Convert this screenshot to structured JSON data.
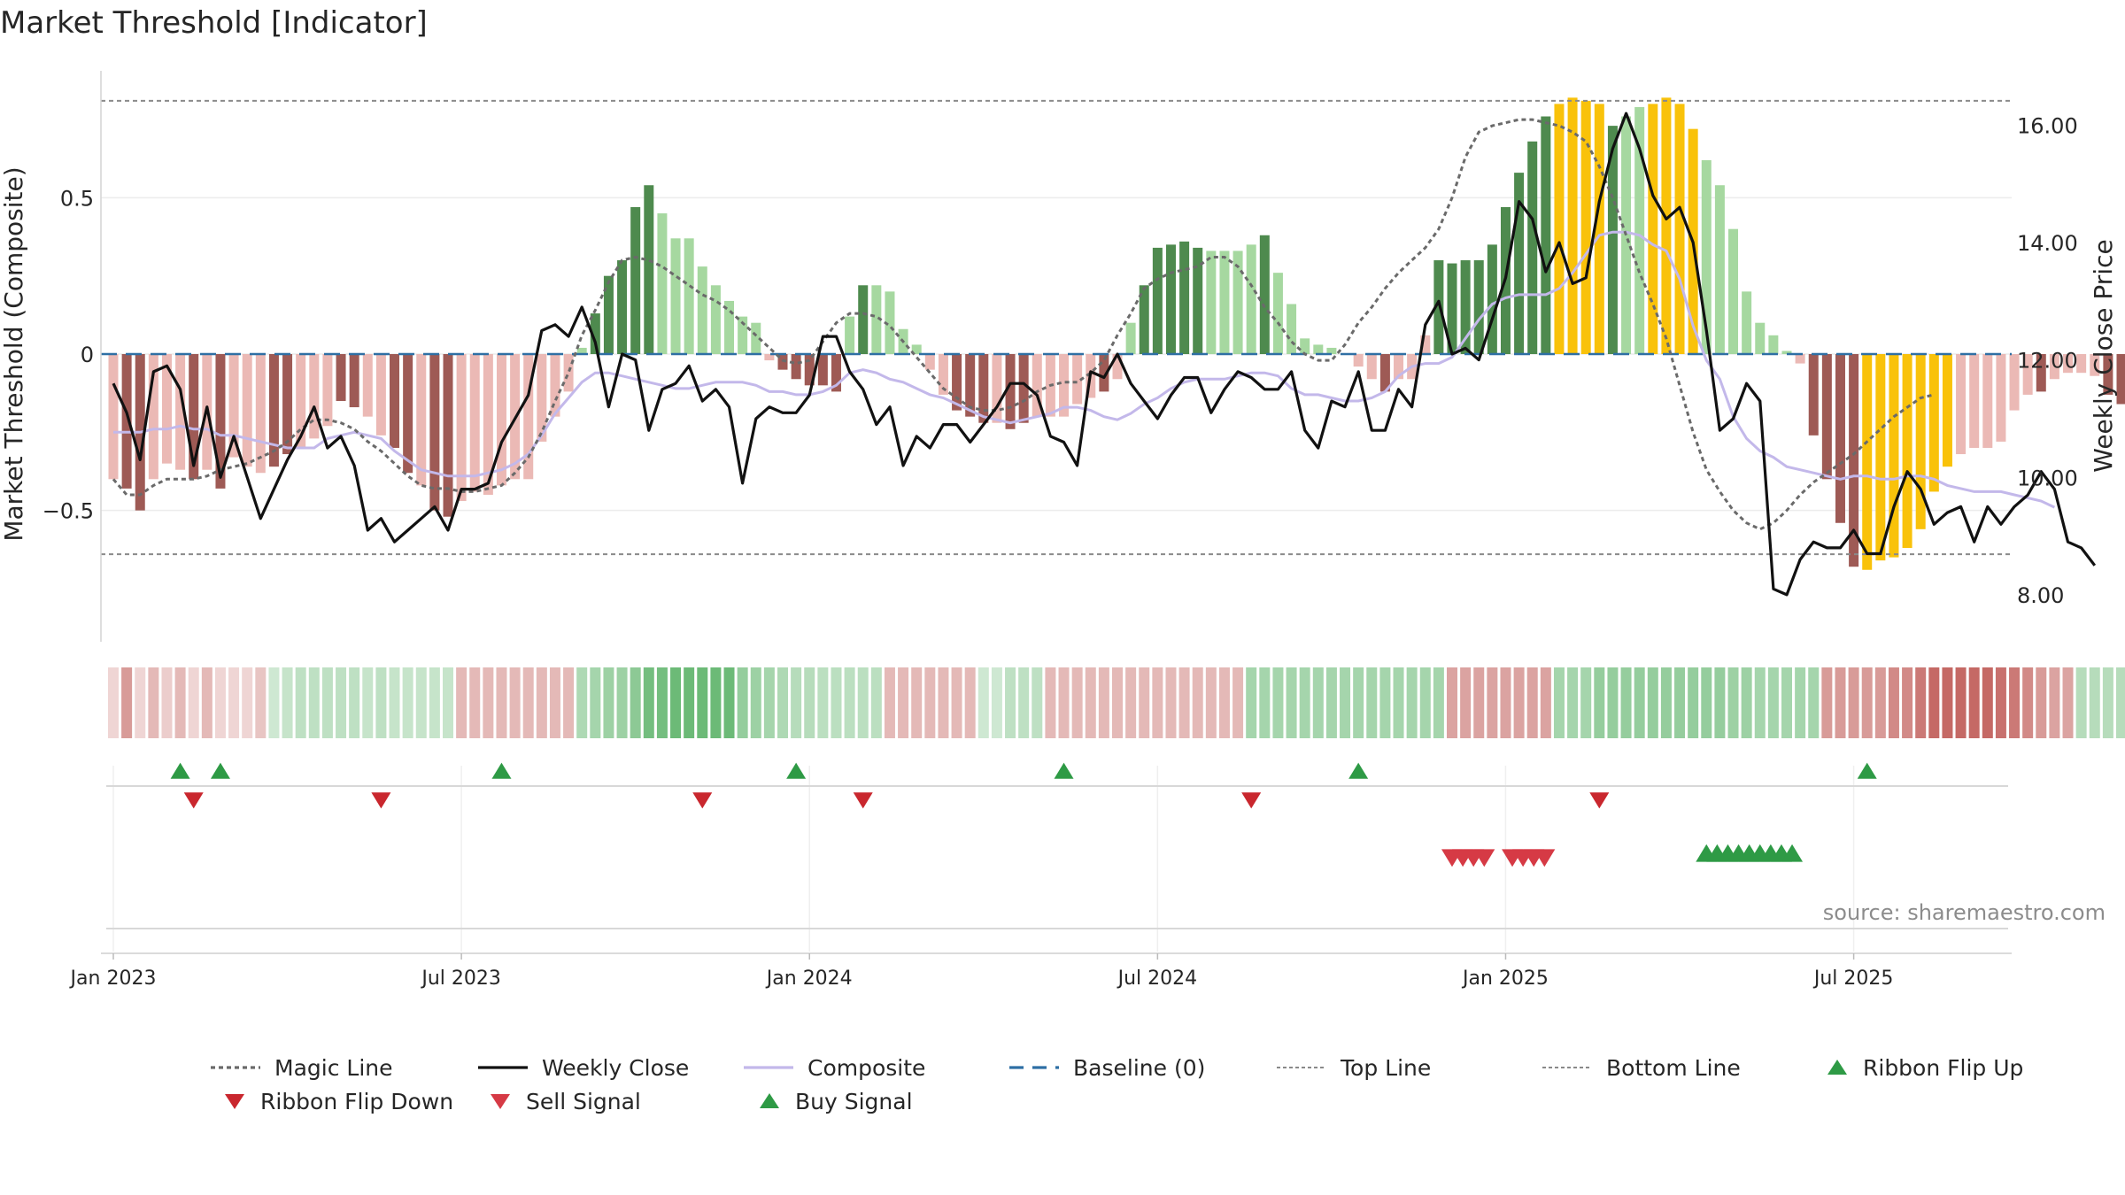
{
  "title": "Market Threshold [Indicator]",
  "source": "source: sharemaestro.com",
  "colors": {
    "dark_green": "#4e8a4e",
    "light_green": "#a6d8a0",
    "dark_red": "#9e5a55",
    "light_red": "#ebb9b5",
    "gold": "#f9c20a",
    "composite": "#c3b8ea",
    "weekly_close": "#111111",
    "magic_line": "#6a6a6a",
    "baseline": "#2e6fa4",
    "buy": "#2e9a45",
    "sell": "#d63a45",
    "ribbon_down": "#c9272e"
  },
  "chart_data": {
    "type": "bar",
    "title": "Market Threshold [Indicator]",
    "ylabel": "Market Threshold (Composite)",
    "y2label": "Weekly Close Price",
    "ylim": [
      -0.92,
      0.92
    ],
    "y2lim": [
      7.2,
      17.0
    ],
    "yticks": [
      "0.5",
      "0",
      "−0.5"
    ],
    "yticks_values": [
      0.5,
      0,
      -0.5
    ],
    "y2ticks": [
      "16.00",
      "14.00",
      "12.00",
      "10.00",
      "8.00"
    ],
    "y2ticks_values": [
      16,
      14,
      12,
      10,
      8
    ],
    "xticks": [
      "Jan 2023",
      "Jul 2023",
      "Jan 2024",
      "Jul 2024",
      "Jan 2025",
      "Jul 2025"
    ],
    "xticks_weeks": [
      0,
      26,
      52,
      78,
      104,
      130
    ],
    "top_line": 0.81,
    "bottom_line": -0.64,
    "grid": true,
    "x_start": "2023-01-02",
    "week_step": 1,
    "composite_bars": [
      -0.4,
      -0.43,
      -0.5,
      -0.4,
      -0.35,
      -0.37,
      -0.4,
      -0.37,
      -0.43,
      -0.33,
      -0.36,
      -0.38,
      -0.36,
      -0.32,
      -0.3,
      -0.27,
      -0.23,
      -0.15,
      -0.17,
      -0.2,
      -0.26,
      -0.3,
      -0.38,
      -0.42,
      -0.5,
      -0.52,
      -0.47,
      -0.44,
      -0.45,
      -0.42,
      -0.4,
      -0.4,
      -0.28,
      -0.2,
      -0.12,
      0.02,
      0.13,
      0.25,
      0.3,
      0.47,
      0.54,
      0.45,
      0.37,
      0.37,
      0.28,
      0.22,
      0.17,
      0.12,
      0.1,
      -0.02,
      -0.05,
      -0.08,
      -0.1,
      -0.1,
      -0.12,
      0.12,
      0.22,
      0.22,
      0.2,
      0.08,
      0.03,
      -0.05,
      -0.13,
      -0.18,
      -0.2,
      -0.22,
      -0.22,
      -0.24,
      -0.22,
      -0.2,
      -0.2,
      -0.2,
      -0.16,
      -0.14,
      -0.12,
      -0.08,
      0.1,
      0.22,
      0.34,
      0.35,
      0.36,
      0.34,
      0.33,
      0.33,
      0.33,
      0.35,
      0.38,
      0.26,
      0.16,
      0.05,
      0.03,
      0.02,
      0.0,
      -0.04,
      -0.08,
      -0.12,
      -0.08,
      -0.08,
      0.06,
      0.3,
      0.29,
      0.3,
      0.3,
      0.35,
      0.47,
      0.58,
      0.68,
      0.76,
      0.8,
      0.82,
      0.81,
      0.8,
      0.73,
      0.76,
      0.79,
      0.8,
      0.82,
      0.8,
      0.72,
      0.62,
      0.54,
      0.4,
      0.2,
      0.1,
      0.06,
      0.01,
      -0.03,
      -0.26,
      -0.4,
      -0.54,
      -0.68,
      -0.69,
      -0.66,
      -0.65,
      -0.62,
      -0.56,
      -0.44,
      -0.36,
      -0.32,
      -0.3,
      -0.3,
      -0.28,
      -0.18,
      -0.13,
      -0.12,
      -0.08,
      -0.06,
      -0.06,
      -0.07,
      -0.13,
      -0.16,
      -0.24
    ],
    "bar_colors": [
      "lr",
      "dr",
      "dr",
      "lr",
      "lr",
      "lr",
      "dr",
      "lr",
      "dr",
      "lr",
      "lr",
      "lr",
      "dr",
      "dr",
      "lr",
      "lr",
      "lr",
      "dr",
      "dr",
      "lr",
      "lr",
      "dr",
      "dr",
      "lr",
      "dr",
      "dr",
      "lr",
      "lr",
      "lr",
      "lr",
      "lr",
      "lr",
      "lr",
      "lr",
      "lr",
      "lg",
      "dg",
      "dg",
      "dg",
      "dg",
      "dg",
      "lg",
      "lg",
      "lg",
      "lg",
      "lg",
      "lg",
      "lg",
      "lg",
      "lr",
      "dr",
      "dr",
      "dr",
      "dr",
      "dr",
      "lg",
      "dg",
      "lg",
      "lg",
      "lg",
      "lg",
      "lr",
      "lr",
      "dr",
      "dr",
      "dr",
      "lr",
      "dr",
      "dr",
      "lr",
      "lr",
      "lr",
      "lr",
      "lr",
      "dr",
      "lr",
      "lg",
      "dg",
      "dg",
      "dg",
      "dg",
      "dg",
      "lg",
      "lg",
      "lg",
      "lg",
      "dg",
      "lg",
      "lg",
      "lg",
      "lg",
      "lg",
      "lg",
      "lr",
      "lr",
      "dr",
      "lr",
      "lr",
      "lr",
      "dg",
      "dg",
      "dg",
      "dg",
      "dg",
      "dg",
      "dg",
      "dg",
      "dg",
      "au",
      "au",
      "au",
      "au",
      "dg",
      "lg",
      "lg",
      "au",
      "au",
      "au",
      "au",
      "lg",
      "lg",
      "lg",
      "lg",
      "lg",
      "lg",
      "lg",
      "lr",
      "dr",
      "dr",
      "dr",
      "dr",
      "au",
      "au",
      "au",
      "au",
      "au",
      "au",
      "au",
      "lr",
      "lr",
      "lr",
      "lr",
      "lr",
      "lr",
      "dr",
      "lr",
      "lr",
      "lr",
      "lr",
      "dr",
      "dr",
      "dr"
    ],
    "series": [
      {
        "name": "Weekly Close",
        "values": [
          11.6,
          11.1,
          10.3,
          11.8,
          11.9,
          11.5,
          10.2,
          11.2,
          10.0,
          10.7,
          10.0,
          9.3,
          9.8,
          10.3,
          10.7,
          11.2,
          10.5,
          10.7,
          10.2,
          9.1,
          9.3,
          8.9,
          9.1,
          9.3,
          9.5,
          9.1,
          9.8,
          9.8,
          9.9,
          10.6,
          11.0,
          11.4,
          12.5,
          12.6,
          12.4,
          12.9,
          12.3,
          11.2,
          12.1,
          12.0,
          10.8,
          11.5,
          11.6,
          11.9,
          11.3,
          11.5,
          11.2,
          9.9,
          11.0,
          11.2,
          11.1,
          11.1,
          11.4,
          12.4,
          12.4,
          11.8,
          11.5,
          10.9,
          11.2,
          10.2,
          10.7,
          10.5,
          10.9,
          10.9,
          10.6,
          10.9,
          11.2,
          11.6,
          11.6,
          11.4,
          10.7,
          10.6,
          10.2,
          11.8,
          11.7,
          12.1,
          11.6,
          11.3,
          11.0,
          11.4,
          11.7,
          11.7,
          11.1,
          11.5,
          11.8,
          11.7,
          11.5,
          11.5,
          11.8,
          10.8,
          10.5,
          11.3,
          11.2,
          11.8,
          10.8,
          10.8,
          11.5,
          11.2,
          12.6,
          13.0,
          12.1,
          12.2,
          12.0,
          12.7,
          13.4,
          14.7,
          14.4,
          13.5,
          14.0,
          13.3,
          13.4,
          14.7,
          15.6,
          16.2,
          15.6,
          14.8,
          14.4,
          14.6,
          14.0,
          12.5,
          10.8,
          11.0,
          11.6,
          11.3,
          8.1,
          8.0,
          8.6,
          8.9,
          8.8,
          8.8,
          9.1,
          8.7,
          8.7,
          9.5,
          10.1,
          9.8,
          9.2,
          9.4,
          9.5,
          8.9,
          9.5,
          9.2,
          9.5,
          9.7,
          10.1,
          9.8,
          8.9,
          8.8,
          8.5
        ]
      },
      {
        "name": "Composite",
        "values": [
          -0.25,
          -0.25,
          -0.25,
          -0.24,
          -0.24,
          -0.23,
          -0.24,
          -0.24,
          -0.26,
          -0.26,
          -0.27,
          -0.28,
          -0.29,
          -0.3,
          -0.3,
          -0.3,
          -0.27,
          -0.26,
          -0.25,
          -0.26,
          -0.27,
          -0.31,
          -0.34,
          -0.37,
          -0.38,
          -0.39,
          -0.39,
          -0.39,
          -0.38,
          -0.37,
          -0.35,
          -0.32,
          -0.26,
          -0.19,
          -0.14,
          -0.09,
          -0.06,
          -0.06,
          -0.07,
          -0.08,
          -0.09,
          -0.1,
          -0.11,
          -0.11,
          -0.1,
          -0.09,
          -0.09,
          -0.09,
          -0.1,
          -0.12,
          -0.12,
          -0.13,
          -0.13,
          -0.12,
          -0.1,
          -0.06,
          -0.05,
          -0.06,
          -0.08,
          -0.09,
          -0.11,
          -0.13,
          -0.14,
          -0.16,
          -0.18,
          -0.2,
          -0.21,
          -0.22,
          -0.21,
          -0.2,
          -0.19,
          -0.17,
          -0.17,
          -0.18,
          -0.2,
          -0.21,
          -0.19,
          -0.16,
          -0.14,
          -0.11,
          -0.09,
          -0.08,
          -0.08,
          -0.08,
          -0.07,
          -0.06,
          -0.06,
          -0.07,
          -0.11,
          -0.13,
          -0.13,
          -0.14,
          -0.15,
          -0.15,
          -0.14,
          -0.12,
          -0.07,
          -0.04,
          -0.03,
          -0.03,
          -0.01,
          0.05,
          0.11,
          0.16,
          0.18,
          0.19,
          0.19,
          0.19,
          0.21,
          0.26,
          0.32,
          0.38,
          0.39,
          0.39,
          0.38,
          0.35,
          0.33,
          0.24,
          0.09,
          -0.02,
          -0.08,
          -0.2,
          -0.27,
          -0.31,
          -0.33,
          -0.36,
          -0.37,
          -0.38,
          -0.39,
          -0.4,
          -0.39,
          -0.39,
          -0.4,
          -0.4,
          -0.39,
          -0.39,
          -0.4,
          -0.42,
          -0.43,
          -0.44,
          -0.44,
          -0.44,
          -0.45,
          -0.46,
          -0.47,
          -0.49
        ]
      },
      {
        "name": "Magic Line",
        "values": [
          -0.4,
          -0.45,
          -0.45,
          -0.42,
          -0.4,
          -0.4,
          -0.4,
          -0.39,
          -0.37,
          -0.36,
          -0.35,
          -0.33,
          -0.31,
          -0.28,
          -0.24,
          -0.21,
          -0.21,
          -0.22,
          -0.24,
          -0.28,
          -0.31,
          -0.35,
          -0.39,
          -0.42,
          -0.43,
          -0.43,
          -0.44,
          -0.44,
          -0.43,
          -0.42,
          -0.38,
          -0.33,
          -0.25,
          -0.15,
          -0.06,
          0.06,
          0.14,
          0.23,
          0.3,
          0.31,
          0.3,
          0.28,
          0.25,
          0.22,
          0.19,
          0.17,
          0.14,
          0.1,
          0.06,
          0.02,
          -0.02,
          -0.03,
          -0.02,
          0.04,
          0.1,
          0.13,
          0.13,
          0.12,
          0.09,
          0.04,
          -0.01,
          -0.06,
          -0.11,
          -0.14,
          -0.17,
          -0.18,
          -0.18,
          -0.17,
          -0.15,
          -0.12,
          -0.1,
          -0.09,
          -0.09,
          -0.06,
          -0.02,
          0.06,
          0.13,
          0.21,
          0.24,
          0.26,
          0.27,
          0.28,
          0.31,
          0.31,
          0.28,
          0.22,
          0.15,
          0.1,
          0.04,
          0.0,
          -0.02,
          -0.02,
          0.03,
          0.1,
          0.15,
          0.21,
          0.26,
          0.3,
          0.34,
          0.4,
          0.5,
          0.63,
          0.71,
          0.73,
          0.74,
          0.75,
          0.75,
          0.74,
          0.73,
          0.71,
          0.68,
          0.6,
          0.5,
          0.38,
          0.26,
          0.16,
          0.05,
          -0.1,
          -0.25,
          -0.37,
          -0.44,
          -0.5,
          -0.54,
          -0.56,
          -0.54,
          -0.5,
          -0.45,
          -0.41,
          -0.38,
          -0.35,
          -0.32,
          -0.28,
          -0.24,
          -0.2,
          -0.17,
          -0.14,
          -0.13
        ]
      }
    ],
    "ribbon_levels": [
      -0.25,
      -0.6,
      -0.25,
      -0.42,
      -0.3,
      -0.42,
      -0.25,
      -0.42,
      -0.25,
      -0.25,
      -0.25,
      -0.35,
      0.3,
      0.35,
      0.4,
      0.4,
      0.4,
      0.4,
      0.4,
      0.35,
      0.4,
      0.35,
      0.35,
      0.35,
      0.35,
      0.35,
      -0.42,
      -0.42,
      -0.42,
      -0.42,
      -0.42,
      -0.42,
      -0.42,
      -0.42,
      -0.42,
      0.5,
      0.55,
      0.6,
      0.6,
      0.7,
      0.85,
      0.85,
      0.9,
      0.9,
      0.9,
      0.9,
      0.9,
      0.65,
      0.6,
      0.55,
      0.5,
      0.45,
      0.45,
      0.42,
      0.42,
      0.42,
      0.42,
      0.42,
      -0.42,
      -0.42,
      -0.42,
      -0.42,
      -0.42,
      -0.42,
      -0.42,
      0.3,
      0.3,
      0.4,
      0.4,
      0.4,
      -0.42,
      -0.42,
      -0.42,
      -0.42,
      -0.42,
      -0.42,
      -0.42,
      -0.42,
      -0.42,
      -0.42,
      -0.42,
      -0.42,
      -0.42,
      -0.42,
      -0.42,
      0.55,
      0.55,
      0.55,
      0.55,
      0.55,
      0.55,
      0.55,
      0.55,
      0.55,
      0.55,
      0.55,
      0.55,
      0.55,
      0.55,
      0.55,
      -0.55,
      -0.55,
      -0.55,
      -0.55,
      -0.55,
      -0.55,
      -0.55,
      -0.55,
      0.55,
      0.55,
      0.55,
      0.65,
      0.65,
      0.65,
      0.65,
      0.65,
      0.65,
      0.65,
      0.65,
      0.65,
      0.65,
      0.6,
      0.6,
      0.55,
      0.55,
      0.55,
      0.55,
      0.55,
      -0.6,
      -0.6,
      -0.6,
      -0.6,
      -0.6,
      -0.7,
      -0.7,
      -0.8,
      -0.9,
      -0.9,
      -0.9,
      -0.9,
      -0.9,
      -0.85,
      -0.8,
      -0.7,
      -0.6,
      -0.55,
      -0.55,
      0.45,
      0.45,
      0.45,
      0.45,
      0.45,
      0.45,
      0.45,
      0.45,
      0.45,
      0.45
    ],
    "ribbon_flip_up": [
      5,
      8,
      29,
      51,
      71,
      93,
      131
    ],
    "ribbon_flip_down": [
      6,
      20,
      44,
      56,
      85,
      111
    ],
    "sell_signals": [
      100.0,
      100.8,
      101.6,
      102.4,
      104.5,
      105.3,
      106.1,
      106.9
    ],
    "buy_signals": [
      119.0,
      119.8,
      120.6,
      121.4,
      122.2,
      123.0,
      123.8,
      124.6,
      125.4
    ],
    "legend": [
      {
        "label": "Magic Line",
        "style": "dotted",
        "color": "#6a6a6a"
      },
      {
        "label": "Weekly Close",
        "style": "solid",
        "color": "#111111"
      },
      {
        "label": "Composite",
        "style": "solid",
        "color": "#c3b8ea"
      },
      {
        "label": "Baseline (0)",
        "style": "dashed",
        "color": "#2e6fa4"
      },
      {
        "label": "Top Line",
        "style": "dotted-light",
        "color": "#8a8a8a"
      },
      {
        "label": "Bottom Line",
        "style": "dotted-light",
        "color": "#8a8a8a"
      },
      {
        "label": "Ribbon Flip Up",
        "style": "tri-up",
        "color": "#2e9a45"
      },
      {
        "label": "Ribbon Flip Down",
        "style": "tri-down",
        "color": "#c9272e"
      },
      {
        "label": "Sell Signal",
        "style": "tri-down",
        "color": "#d63a45"
      },
      {
        "label": "Buy Signal",
        "style": "tri-up",
        "color": "#2e9a45"
      }
    ]
  }
}
